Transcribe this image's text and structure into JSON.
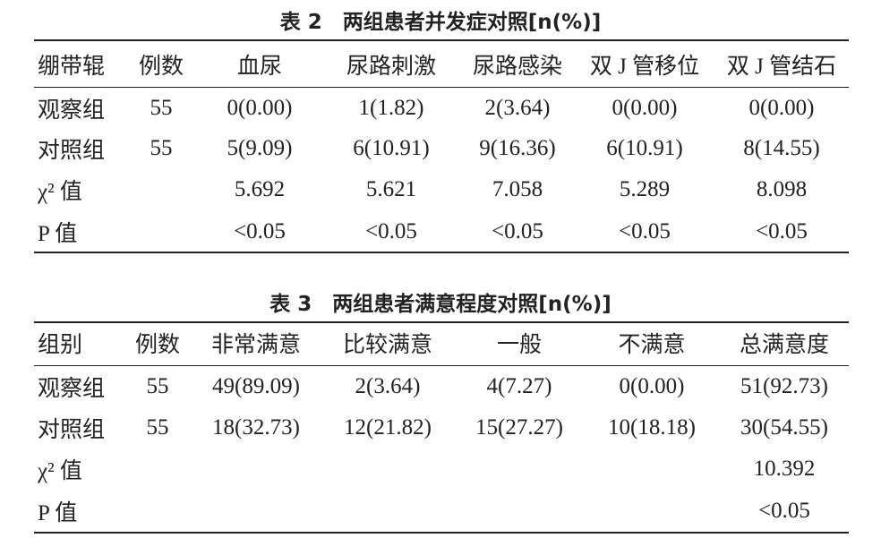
{
  "tables": [
    {
      "title": "表 2　两组患者并发症对照[n(%)]",
      "header": [
        "绷带辊",
        "例数",
        "血尿",
        "尿路刺激",
        "尿路感染",
        "双 J 管移位",
        "双 J 管结石"
      ],
      "rows": [
        [
          "观察组",
          "55",
          "0(0.00)",
          "1(1.82)",
          "2(3.64)",
          "0(0.00)",
          "0(0.00)"
        ],
        [
          "对照组",
          "55",
          "5(9.09)",
          "6(10.91)",
          "9(16.36)",
          "6(10.91)",
          "8(14.55)"
        ],
        [
          "χ² 值",
          null,
          "5.692",
          "5.621",
          "7.058",
          "5.289",
          "8.098"
        ],
        [
          "P 值",
          null,
          "<0.05",
          "<0.05",
          "<0.05",
          "<0.05",
          "<0.05"
        ]
      ]
    },
    {
      "title": "表 3　两组患者满意程度对照[n(%)]",
      "header": [
        "组别",
        "例数",
        "非常满意",
        "比较满意",
        "一般",
        "不满意",
        "总满意度"
      ],
      "rows": [
        [
          "观察组",
          "55",
          "49(89.09)",
          "2(3.64)",
          "4(7.27)",
          "0(0.00)",
          "51(92.73)"
        ],
        [
          "对照组",
          "55",
          "18(32.73)",
          "12(21.82)",
          "15(27.27)",
          "10(18.18)",
          "30(54.55)"
        ],
        [
          "χ² 值",
          null,
          null,
          null,
          null,
          null,
          "10.392"
        ],
        [
          "P 值",
          null,
          null,
          null,
          null,
          null,
          "<0.05"
        ]
      ]
    }
  ]
}
